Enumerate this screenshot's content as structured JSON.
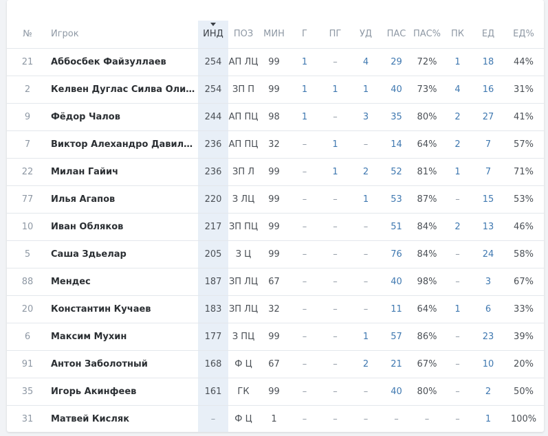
{
  "colors": {
    "link": "#3f78b0",
    "sorted_column_bg": "#e8eff7",
    "header_text": "#8e98a4"
  },
  "sort": {
    "column": "ind",
    "direction": "desc",
    "indicator": "sort-desc-arrow"
  },
  "headers": {
    "num": "№",
    "player": "Игрок",
    "ind": "ИНД",
    "pos": "ПОЗ",
    "min": "МИН",
    "g": "Г",
    "pg": "ПГ",
    "ud": "УД",
    "pas": "ПАС",
    "pas_pct": "ПАС%",
    "pk": "ПК",
    "ed": "ЕД",
    "ed_pct": "ЕД%"
  },
  "rows": [
    {
      "num": "21",
      "player": "Аббосбек Файзуллаев",
      "ind": "254",
      "pos": "АП ЛЦ",
      "min": "99",
      "g": "1",
      "pg": "–",
      "ud": "4",
      "pas": "29",
      "pas_pct": "72%",
      "pk": "1",
      "ed": "18",
      "ed_pct": "44%"
    },
    {
      "num": "2",
      "player": "Келвен Дуглас Силва Оливе...",
      "ind": "254",
      "pos": "ЗП П",
      "min": "99",
      "g": "1",
      "pg": "1",
      "ud": "1",
      "pas": "40",
      "pas_pct": "73%",
      "pk": "4",
      "ed": "16",
      "ed_pct": "31%"
    },
    {
      "num": "9",
      "player": "Фёдор Чалов",
      "ind": "244",
      "pos": "АП ПЦ",
      "min": "98",
      "g": "1",
      "pg": "–",
      "ud": "3",
      "pas": "35",
      "pas_pct": "80%",
      "pk": "2",
      "ed": "27",
      "ed_pct": "41%"
    },
    {
      "num": "7",
      "player": "Виктор Алехандро Давила С...",
      "ind": "236",
      "pos": "АП ПЦ",
      "min": "32",
      "g": "–",
      "pg": "1",
      "ud": "–",
      "pas": "14",
      "pas_pct": "64%",
      "pk": "2",
      "ed": "7",
      "ed_pct": "57%"
    },
    {
      "num": "22",
      "player": "Милан Гайич",
      "ind": "236",
      "pos": "ЗП Л",
      "min": "99",
      "g": "–",
      "pg": "1",
      "ud": "2",
      "pas": "52",
      "pas_pct": "81%",
      "pk": "1",
      "ed": "7",
      "ed_pct": "71%"
    },
    {
      "num": "77",
      "player": "Илья Агапов",
      "ind": "220",
      "pos": "З ЛЦ",
      "min": "99",
      "g": "–",
      "pg": "–",
      "ud": "1",
      "pas": "53",
      "pas_pct": "87%",
      "pk": "–",
      "ed": "15",
      "ed_pct": "53%"
    },
    {
      "num": "10",
      "player": "Иван Обляков",
      "ind": "217",
      "pos": "ЗП ПЦ",
      "min": "99",
      "g": "–",
      "pg": "–",
      "ud": "–",
      "pas": "51",
      "pas_pct": "84%",
      "pk": "2",
      "ed": "13",
      "ed_pct": "46%"
    },
    {
      "num": "5",
      "player": "Саша Здьелар",
      "ind": "205",
      "pos": "З Ц",
      "min": "99",
      "g": "–",
      "pg": "–",
      "ud": "–",
      "pas": "76",
      "pas_pct": "84%",
      "pk": "–",
      "ed": "24",
      "ed_pct": "58%"
    },
    {
      "num": "88",
      "player": "Мендес",
      "ind": "187",
      "pos": "ЗП ЛЦ",
      "min": "67",
      "g": "–",
      "pg": "–",
      "ud": "–",
      "pas": "40",
      "pas_pct": "98%",
      "pk": "–",
      "ed": "3",
      "ed_pct": "67%"
    },
    {
      "num": "20",
      "player": "Константин Кучаев",
      "ind": "183",
      "pos": "ЗП ЛЦ",
      "min": "32",
      "g": "–",
      "pg": "–",
      "ud": "–",
      "pas": "11",
      "pas_pct": "64%",
      "pk": "1",
      "ed": "6",
      "ed_pct": "33%"
    },
    {
      "num": "6",
      "player": "Максим Мухин",
      "ind": "177",
      "pos": "З ПЦ",
      "min": "99",
      "g": "–",
      "pg": "–",
      "ud": "1",
      "pas": "57",
      "pas_pct": "86%",
      "pk": "–",
      "ed": "23",
      "ed_pct": "39%"
    },
    {
      "num": "91",
      "player": "Антон Заболотный",
      "ind": "168",
      "pos": "Ф Ц",
      "min": "67",
      "g": "–",
      "pg": "–",
      "ud": "2",
      "pas": "21",
      "pas_pct": "67%",
      "pk": "–",
      "ed": "10",
      "ed_pct": "20%"
    },
    {
      "num": "35",
      "player": "Игорь Акинфеев",
      "ind": "161",
      "pos": "ГК",
      "min": "99",
      "g": "–",
      "pg": "–",
      "ud": "–",
      "pas": "40",
      "pas_pct": "80%",
      "pk": "–",
      "ed": "2",
      "ed_pct": "50%"
    },
    {
      "num": "31",
      "player": "Матвей Кисляк",
      "ind": "–",
      "pos": "Ф Ц",
      "min": "1",
      "g": "–",
      "pg": "–",
      "ud": "–",
      "pas": "–",
      "pas_pct": "–",
      "pk": "–",
      "ed": "1",
      "ed_pct": "100%"
    }
  ]
}
